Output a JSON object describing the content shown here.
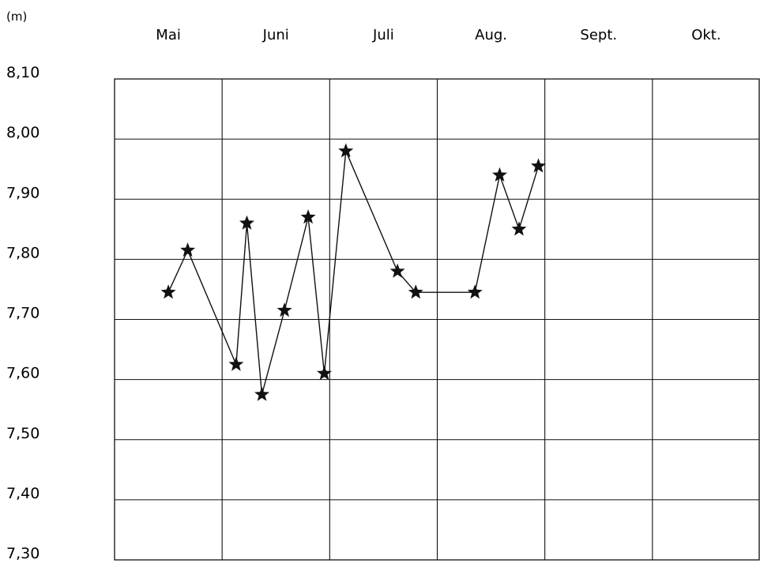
{
  "chart_data": {
    "type": "line",
    "unit_label": "(m)",
    "categories": [
      "Mai",
      "Juni",
      "Juli",
      "Aug.",
      "Sept.",
      "Okt."
    ],
    "y_ticks": [
      "8,10",
      "8,00",
      "7,90",
      "7,80",
      "7,70",
      "7,60",
      "7,50",
      "7,40",
      "7,30"
    ],
    "y_tick_values": [
      8.1,
      8.0,
      7.9,
      7.8,
      7.7,
      7.6,
      7.5,
      7.4,
      7.3
    ],
    "ylim": [
      7.3,
      8.1
    ],
    "xlim": [
      0,
      6
    ],
    "grid": true,
    "marker": "star",
    "series": [
      {
        "x": [
          0.5,
          0.68,
          1.13,
          1.23,
          1.37,
          1.58,
          1.8,
          1.95,
          2.15,
          2.63,
          2.8,
          3.35,
          3.58,
          3.76,
          3.94
        ],
        "y": [
          7.745,
          7.815,
          7.625,
          7.86,
          7.575,
          7.715,
          7.87,
          7.61,
          7.98,
          7.78,
          7.745,
          7.745,
          7.94,
          7.85,
          7.955
        ]
      }
    ]
  }
}
